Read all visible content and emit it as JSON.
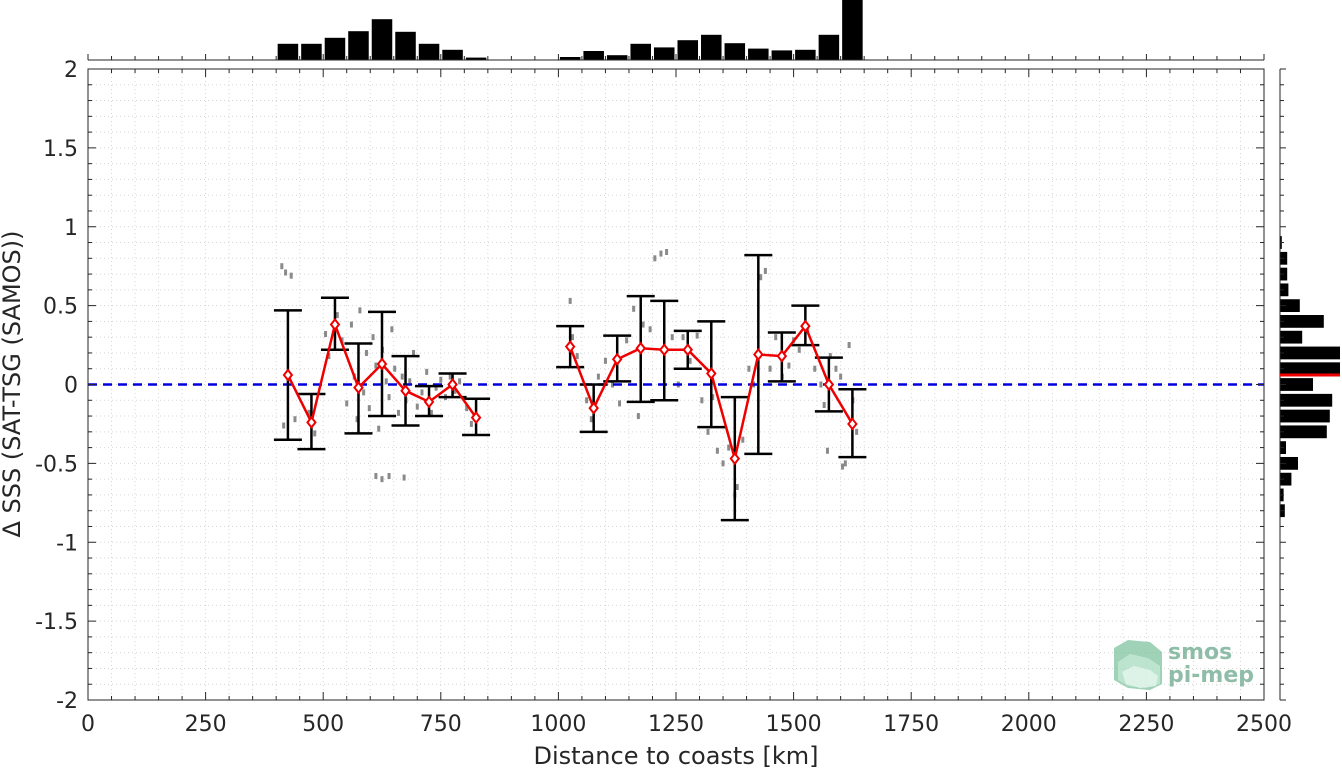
{
  "chart_data": {
    "type": "line",
    "title": "",
    "xlabel": "Distance to coasts [km]",
    "ylabel": "Δ SSS (SAT-TSG (SAMOS))",
    "xlim": [
      0,
      2500
    ],
    "ylim": [
      -2,
      2
    ],
    "grid": true,
    "x_ticks": [
      0,
      250,
      500,
      750,
      1000,
      1250,
      1500,
      1750,
      2000,
      2250,
      2500
    ],
    "y_ticks": [
      2,
      1.5,
      1,
      0.5,
      0,
      -0.5,
      -1,
      -1.5,
      -2
    ],
    "x_tick_labels": [
      "0",
      "250",
      "500",
      "750",
      "1000",
      "1250",
      "1500",
      "1750",
      "2000",
      "2250",
      "2500"
    ],
    "y_tick_labels": [
      "2",
      "1.5",
      "1",
      "0.5",
      "0",
      "-0.5",
      "-1",
      "-1.5",
      "-2"
    ],
    "reference_line": {
      "y": 0,
      "color": "#0000dd",
      "style": "dashed"
    },
    "series": [
      {
        "color": "#ee0000",
        "marker": "diamond",
        "x": [
          425,
          475,
          525,
          575,
          625,
          675,
          725,
          775,
          825,
          null,
          1025,
          1075,
          1125,
          1175,
          1225,
          1275,
          1325,
          1375,
          1425,
          1475,
          1525,
          1575,
          1625
        ],
        "y": [
          0.06,
          -0.24,
          0.38,
          -0.02,
          0.13,
          -0.04,
          -0.11,
          0.0,
          -0.21,
          null,
          0.24,
          -0.15,
          0.16,
          0.23,
          0.22,
          0.22,
          0.07,
          -0.47,
          0.19,
          0.18,
          0.37,
          0.0,
          -0.25
        ],
        "err_low": [
          -0.35,
          -0.41,
          0.22,
          -0.31,
          -0.2,
          -0.26,
          -0.2,
          -0.08,
          -0.32,
          null,
          0.11,
          -0.3,
          0.02,
          -0.11,
          -0.1,
          0.1,
          -0.27,
          -0.86,
          -0.44,
          0.02,
          0.25,
          -0.17,
          -0.46
        ],
        "err_high": [
          0.47,
          -0.06,
          0.55,
          0.26,
          0.46,
          0.18,
          -0.01,
          0.07,
          -0.09,
          null,
          0.37,
          0.0,
          0.31,
          0.56,
          0.53,
          0.34,
          0.4,
          -0.08,
          0.82,
          0.33,
          0.5,
          0.17,
          -0.03
        ]
      }
    ],
    "scatter_points": [
      [
        412,
        0.75
      ],
      [
        420,
        0.71
      ],
      [
        432,
        0.69
      ],
      [
        416,
        -0.26
      ],
      [
        440,
        -0.22
      ],
      [
        470,
        -0.18
      ],
      [
        482,
        -0.31
      ],
      [
        505,
        0.32
      ],
      [
        512,
        0.18
      ],
      [
        530,
        0.44
      ],
      [
        540,
        0.28
      ],
      [
        550,
        -0.12
      ],
      [
        560,
        0.38
      ],
      [
        566,
        0.05
      ],
      [
        572,
        -0.22
      ],
      [
        578,
        0.47
      ],
      [
        586,
        -0.05
      ],
      [
        592,
        0.2
      ],
      [
        598,
        -0.15
      ],
      [
        606,
        0.3
      ],
      [
        612,
        0.12
      ],
      [
        618,
        -0.28
      ],
      [
        626,
        0.22
      ],
      [
        634,
        0.02
      ],
      [
        640,
        -0.08
      ],
      [
        646,
        0.35
      ],
      [
        652,
        0.1
      ],
      [
        660,
        -0.18
      ],
      [
        668,
        0.05
      ],
      [
        676,
        -0.1
      ],
      [
        684,
        0.02
      ],
      [
        692,
        0.2
      ],
      [
        700,
        -0.14
      ],
      [
        710,
        -0.05
      ],
      [
        720,
        0.08
      ],
      [
        730,
        -0.18
      ],
      [
        740,
        -0.02
      ],
      [
        750,
        0.03
      ],
      [
        760,
        -0.08
      ],
      [
        770,
        0.05
      ],
      [
        780,
        -0.04
      ],
      [
        790,
        0.02
      ],
      [
        805,
        -0.15
      ],
      [
        815,
        -0.25
      ],
      [
        612,
        -0.58
      ],
      [
        625,
        -0.6
      ],
      [
        640,
        -0.58
      ],
      [
        672,
        -0.59
      ],
      [
        1025,
        0.53
      ],
      [
        1030,
        0.3
      ],
      [
        1040,
        0.18
      ],
      [
        1060,
        -0.1
      ],
      [
        1070,
        -0.22
      ],
      [
        1085,
        0.05
      ],
      [
        1100,
        0.15
      ],
      [
        1115,
        0.0
      ],
      [
        1130,
        -0.12
      ],
      [
        1145,
        0.28
      ],
      [
        1160,
        0.48
      ],
      [
        1170,
        -0.2
      ],
      [
        1180,
        0.38
      ],
      [
        1195,
        0.35
      ],
      [
        1205,
        0.8
      ],
      [
        1218,
        0.83
      ],
      [
        1230,
        0.84
      ],
      [
        1242,
        0.3
      ],
      [
        1255,
        0.0
      ],
      [
        1265,
        0.3
      ],
      [
        1280,
        0.15
      ],
      [
        1295,
        0.31
      ],
      [
        1305,
        -0.1
      ],
      [
        1318,
        -0.3
      ],
      [
        1328,
        -0.08
      ],
      [
        1338,
        -0.42
      ],
      [
        1350,
        -0.5
      ],
      [
        1362,
        -0.4
      ],
      [
        1375,
        -0.7
      ],
      [
        1380,
        -0.65
      ],
      [
        1392,
        -0.35
      ],
      [
        1405,
        0.1
      ],
      [
        1415,
        0.0
      ],
      [
        1430,
        0.68
      ],
      [
        1440,
        0.72
      ],
      [
        1450,
        0.1
      ],
      [
        1462,
        0.3
      ],
      [
        1476,
        0.05
      ],
      [
        1490,
        0.12
      ],
      [
        1500,
        0.28
      ],
      [
        1512,
        0.22
      ],
      [
        1530,
        0.35
      ],
      [
        1545,
        0.1
      ],
      [
        1558,
        0.0
      ],
      [
        1565,
        -0.13
      ],
      [
        1578,
        0.18
      ],
      [
        1590,
        0.1
      ],
      [
        1600,
        0.05
      ],
      [
        1610,
        -0.5
      ],
      [
        1618,
        0.25
      ],
      [
        1626,
        -0.1
      ],
      [
        1634,
        -0.3
      ],
      [
        1572,
        -0.42
      ],
      [
        1604,
        -0.52
      ]
    ],
    "top_histogram": {
      "x_centers": [
        425,
        475,
        525,
        575,
        625,
        675,
        725,
        775,
        825,
        1025,
        1075,
        1125,
        1175,
        1225,
        1275,
        1325,
        1375,
        1425,
        1475,
        1525,
        1575,
        1625
      ],
      "values": [
        0.27,
        0.27,
        0.37,
        0.48,
        0.68,
        0.47,
        0.27,
        0.17,
        0.04,
        0.05,
        0.15,
        0.08,
        0.27,
        0.21,
        0.33,
        0.42,
        0.28,
        0.19,
        0.16,
        0.17,
        0.42,
        1.0
      ]
    },
    "right_histogram": {
      "y_centers": [
        0.9,
        0.8,
        0.7,
        0.6,
        0.5,
        0.4,
        0.3,
        0.2,
        0.1,
        0.0,
        -0.1,
        -0.2,
        -0.3,
        -0.4,
        -0.5,
        -0.6,
        -0.7,
        -0.8
      ],
      "values": [
        0.03,
        0.12,
        0.12,
        0.14,
        0.33,
        0.73,
        0.37,
        1.0,
        1.0,
        0.55,
        0.87,
        0.83,
        0.78,
        0.1,
        0.3,
        0.19,
        0.06,
        0.08
      ],
      "mean_line_y": 0.06,
      "mean_line_color": "#ee0000"
    }
  },
  "logo": {
    "line1": "smos",
    "line2": "pi-mep",
    "color": "#6aa88a"
  }
}
